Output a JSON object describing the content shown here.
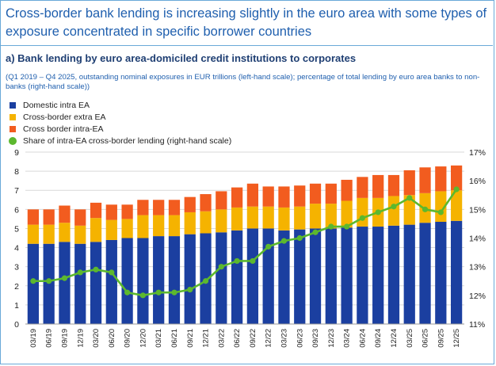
{
  "header": {
    "title": "Cross-border bank lending is increasing slightly in the euro area with some types of exposure concentrated in specific borrower countries"
  },
  "panel": {
    "subtitle": "a) Bank lending by euro area-domiciled credit institutions to corporates",
    "note": "(Q1 2019 – Q4 2025, outstanding nominal exposures in EUR trillions (left-hand scale); percentage of total lending by euro area banks to non-banks (right-hand scale))"
  },
  "legend": [
    {
      "label": "Domestic intra EA",
      "color": "#1b3fa0",
      "shape": "square"
    },
    {
      "label": "Cross-border extra EA",
      "color": "#f5b300",
      "shape": "square"
    },
    {
      "label": "Cross border intra-EA",
      "color": "#f25c1f",
      "shape": "square"
    },
    {
      "label": "Share of intra-EA cross-border lending (right-hand scale)",
      "color": "#5cb82e",
      "shape": "dot"
    }
  ],
  "chart_data": {
    "type": "bar",
    "stacked": true,
    "categories": [
      "03/19",
      "06/19",
      "09/19",
      "12/19",
      "03/20",
      "06/20",
      "09/20",
      "12/20",
      "03/21",
      "06/21",
      "09/21",
      "12/21",
      "03/22",
      "06/22",
      "09/22",
      "12/22",
      "03/23",
      "06/23",
      "09/23",
      "12/23",
      "03/24",
      "06/24",
      "09/24",
      "12/24",
      "03/25",
      "06/25",
      "09/25",
      "12/25"
    ],
    "tick_labels": [
      "03/19",
      "06/19",
      "09/19",
      "12/19",
      "03/20",
      "06/20",
      "09/20",
      "12/20",
      "03/21",
      "06/21",
      "09/21",
      "12/21",
      "03/22",
      "06/22",
      "09/22",
      "12/22",
      "03/23",
      "06/23",
      "09/23",
      "12/23",
      "03/24",
      "06/24",
      "09/24",
      "12/24",
      "03/25",
      "06/25",
      "09/25",
      "12/25"
    ],
    "series": [
      {
        "name": "Domestic intra EA",
        "color": "#1b3fa0",
        "values": [
          4.2,
          4.2,
          4.3,
          4.2,
          4.3,
          4.4,
          4.5,
          4.5,
          4.6,
          4.6,
          4.7,
          4.75,
          4.8,
          4.9,
          5.0,
          5.0,
          4.9,
          4.95,
          5.0,
          5.0,
          5.05,
          5.1,
          5.1,
          5.15,
          5.2,
          5.3,
          5.35,
          5.4
        ]
      },
      {
        "name": "Cross-border extra EA",
        "color": "#f5b300",
        "values": [
          1.0,
          1.0,
          1.0,
          0.95,
          1.25,
          1.05,
          1.0,
          1.2,
          1.1,
          1.1,
          1.15,
          1.15,
          1.2,
          1.2,
          1.15,
          1.15,
          1.2,
          1.2,
          1.3,
          1.3,
          1.4,
          1.5,
          1.5,
          1.55,
          1.55,
          1.55,
          1.6,
          1.6
        ]
      },
      {
        "name": "Cross border intra-EA",
        "color": "#f25c1f",
        "values": [
          0.8,
          0.8,
          0.9,
          0.85,
          0.8,
          0.8,
          0.75,
          0.8,
          0.8,
          0.8,
          0.8,
          0.9,
          0.95,
          1.05,
          1.2,
          1.05,
          1.1,
          1.1,
          1.05,
          1.05,
          1.1,
          1.1,
          1.2,
          1.1,
          1.3,
          1.35,
          1.3,
          1.3
        ]
      },
      {
        "name": "Share of intra-EA cross-border lending (right-hand scale)",
        "color": "#5cb82e",
        "type": "line",
        "axis": "right",
        "values": [
          12.5,
          12.5,
          12.6,
          12.8,
          12.9,
          12.8,
          12.1,
          12.0,
          12.1,
          12.1,
          12.2,
          12.5,
          13.0,
          13.2,
          13.2,
          13.7,
          13.9,
          14.0,
          14.2,
          14.4,
          14.4,
          14.7,
          14.9,
          15.1,
          15.4,
          15.0,
          14.9,
          15.7
        ]
      }
    ],
    "ylim": [
      0,
      9
    ],
    "yticks": [
      0,
      1,
      2,
      3,
      4,
      5,
      6,
      7,
      8,
      9
    ],
    "y2lim": [
      11,
      17
    ],
    "y2ticks": [
      "11%",
      "12%",
      "13%",
      "14%",
      "15%",
      "16%",
      "17%"
    ],
    "grid": true,
    "legend_position": "top-left"
  }
}
